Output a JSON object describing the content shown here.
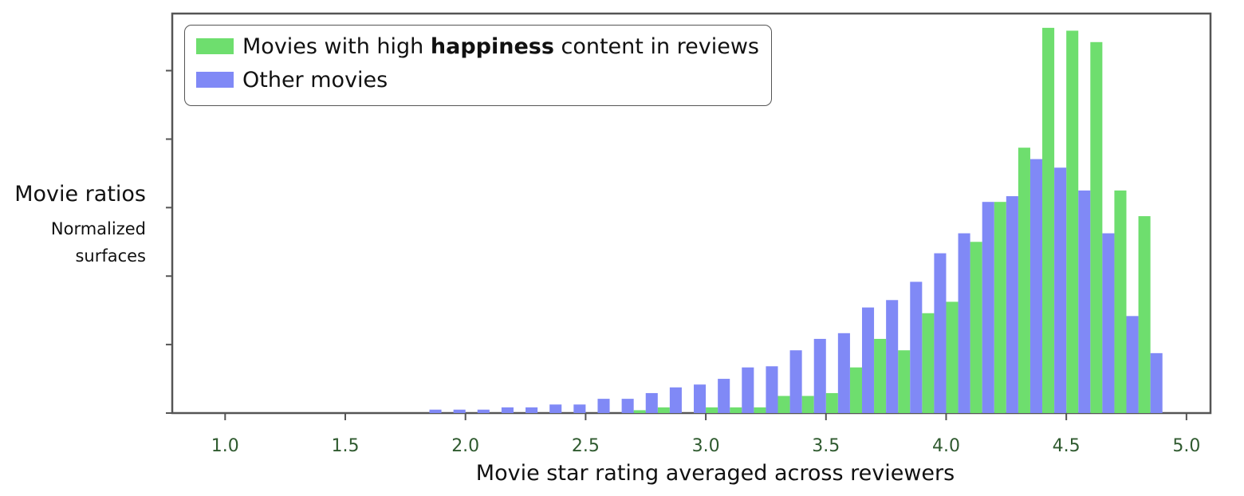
{
  "chart_data": {
    "type": "bar",
    "ylabel": "Movie ratios",
    "ylabel_sub": "Normalized surfaces",
    "xlabel": "Movie star rating averaged across reviewers",
    "xlim": [
      0.78,
      5.1
    ],
    "ylim": [
      0,
      7.0
    ],
    "x_ticks": [
      "1.0",
      "1.5",
      "2.0",
      "2.5",
      "3.0",
      "3.5",
      "4.0",
      "4.5",
      "5.0"
    ],
    "y_tick_count": 6,
    "grid": false,
    "legend_position": "top-left",
    "bin_width": 0.1,
    "bin_starts": [
      1.8,
      1.9,
      2.0,
      2.1,
      2.2,
      2.3,
      2.4,
      2.5,
      2.6,
      2.7,
      2.8,
      2.9,
      3.0,
      3.1,
      3.2,
      3.3,
      3.4,
      3.5,
      3.6,
      3.7,
      3.8,
      3.9,
      4.0,
      4.1,
      4.2,
      4.3,
      4.4,
      4.5,
      4.6,
      4.7,
      4.8
    ],
    "series": [
      {
        "name_parts": [
          "Movies with high ",
          "happiness",
          " content in reviews"
        ],
        "color": "#6ede6e",
        "values": [
          0,
          0,
          0,
          0,
          0,
          0,
          0,
          0,
          0,
          0.05,
          0.1,
          0,
          0.1,
          0.1,
          0.1,
          0.3,
          0.3,
          0.35,
          0.8,
          1.3,
          1.1,
          1.75,
          1.95,
          3.0,
          3.7,
          4.65,
          6.75,
          6.7,
          6.5,
          3.9,
          3.45
        ],
        "offset": 0
      },
      {
        "name": "Other movies",
        "color": "#8089f6",
        "values": [
          0.06,
          0.06,
          0.06,
          0.1,
          0.1,
          0.15,
          0.15,
          0.25,
          0.25,
          0.35,
          0.45,
          0.5,
          0.6,
          0.8,
          0.82,
          1.1,
          1.3,
          1.4,
          1.85,
          1.98,
          2.3,
          2.8,
          3.15,
          3.7,
          3.8,
          4.45,
          4.3,
          3.9,
          3.15,
          1.7,
          1.05
        ],
        "offset": 1
      }
    ]
  }
}
